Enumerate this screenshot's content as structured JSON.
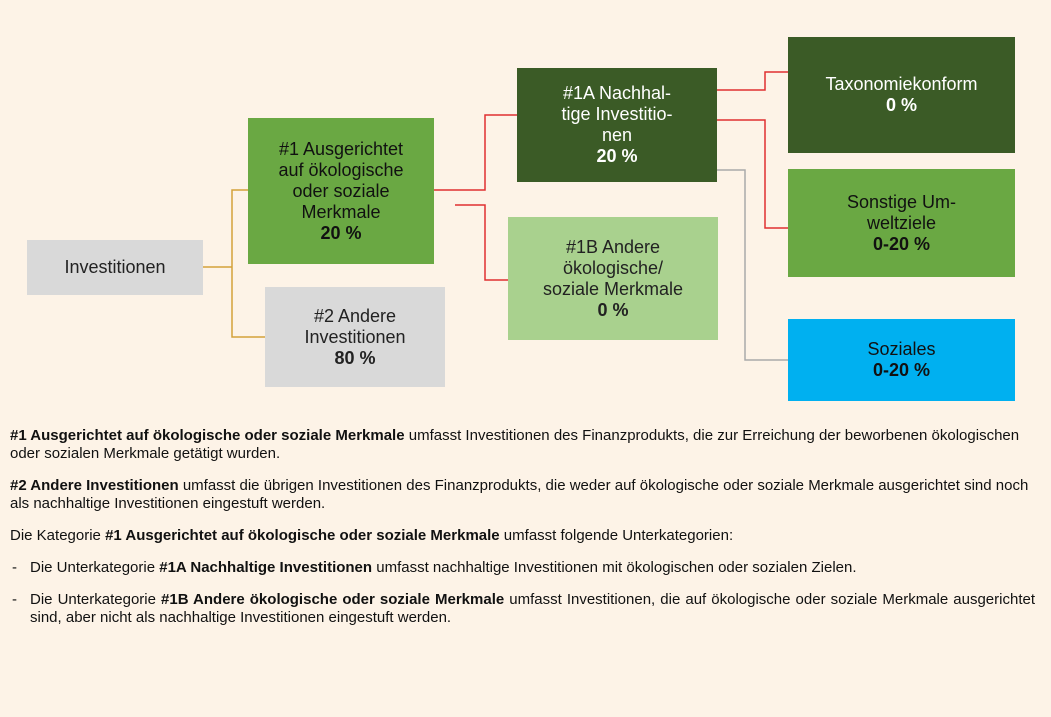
{
  "nodes": [
    {
      "lines": [
        "Investitionen"
      ]
    },
    {
      "lines": [
        "#1 Ausgerichtet",
        "auf ökologische",
        "oder soziale",
        "Merkmale"
      ],
      "value": "20 %"
    },
    {
      "lines": [
        "#2 Andere",
        "Investitionen"
      ],
      "value": "80 %"
    },
    {
      "lines": [
        "#1A Nachhal-",
        "tige Investitio-",
        "nen"
      ],
      "value": "20 %"
    },
    {
      "lines": [
        "#1B Andere",
        "ökologische/",
        "soziale Merkmale"
      ],
      "value": "0 %"
    },
    {
      "lines": [
        "Taxonomiekonform"
      ],
      "value": "0 %"
    },
    {
      "lines": [
        "Sonstige Um-",
        "weltziele"
      ],
      "value": "0-20 %"
    },
    {
      "lines": [
        "Soziales"
      ],
      "value": "0-20 %"
    }
  ],
  "paragraphs": [
    {
      "bold": "#1 Ausgerichtet auf ökologische oder soziale Merkmale",
      "after": " umfasst Investitionen des Finanzprodukts, die zur Erreichung der beworbenen ökologischen oder sozialen Merkmale getätigt wurden."
    },
    {
      "bold": "#2 Andere Investitionen",
      "after": " umfasst die übrigen Investitionen des Finanzprodukts, die weder auf ökologische oder soziale Merkmale ausgerichtet sind noch als nachhaltige Investitionen eingestuft werden."
    },
    {
      "before": "Die Kategorie ",
      "bold": "#1 Ausgerichtet auf ökologische oder soziale Merkmale",
      "after": " umfasst folgende Unterkategorien:"
    }
  ],
  "list": [
    {
      "before": "Die Unterkategorie ",
      "bold": "#1A Nachhaltige Investitionen",
      "after": " umfasst nachhaltige Investitionen mit ökologischen oder sozialen Zielen."
    },
    {
      "before": "Die Unterkategorie ",
      "bold": "#1B Andere ökologische oder soziale Merkmale",
      "after": " umfasst Investitionen, die auf ökologische oder soziale Merkmale ausgerichtet sind, aber nicht als nachhaltige Investitionen eingestuft werden."
    }
  ]
}
